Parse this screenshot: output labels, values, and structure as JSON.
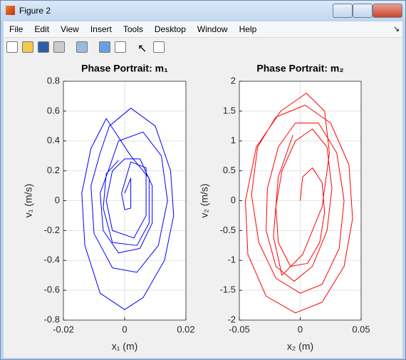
{
  "window": {
    "title": "Figure 2",
    "menu": [
      "File",
      "Edit",
      "View",
      "Insert",
      "Tools",
      "Desktop",
      "Window",
      "Help"
    ]
  },
  "chart_data": [
    {
      "type": "line",
      "title": "Phase Portrait: m₁",
      "x_label": "x₁ (m)",
      "y_label": "v₁ (m/s)",
      "color": "#0000ff",
      "grid": true,
      "xlim": [
        -0.02,
        0.02
      ],
      "xticks": [
        -0.02,
        0,
        0.02
      ],
      "ylim": [
        -0.8,
        0.8
      ],
      "yticks": [
        -0.8,
        -0.6,
        -0.4,
        -0.2,
        0,
        0.2,
        0.4,
        0.6,
        0.8
      ],
      "x": [
        0,
        0.002,
        0.002,
        0,
        -0.001,
        0,
        0.002,
        0.007,
        0.007,
        0.003,
        -0.004,
        -0.006,
        -0.004,
        0,
        0.005,
        0.009,
        0.009,
        0.005,
        -0.002,
        -0.007,
        -0.008,
        -0.005,
        -0.002,
        0.006,
        0.012,
        0.014,
        0.011,
        0.004,
        -0.004,
        -0.01,
        -0.011,
        -0.008,
        -0.005,
        0.002,
        0.01,
        0.015,
        0.016,
        0.013,
        0.006,
        0,
        -0.008,
        -0.013,
        -0.014,
        -0.011,
        -0.006,
        0.002,
        0.008,
        0.008,
        0.004,
        -0.004,
        -0.007,
        -0.006,
        -0.002
      ],
      "values": [
        0.05,
        0.15,
        -0.05,
        -0.06,
        0.05,
        0.12,
        0.26,
        0.22,
        -0.1,
        -0.25,
        -0.2,
        0,
        0.2,
        0.28,
        0.28,
        0.1,
        -0.15,
        -0.32,
        -0.35,
        -0.2,
        0.05,
        0.22,
        0.4,
        0.46,
        0.3,
        0,
        -0.3,
        -0.48,
        -0.45,
        -0.22,
        0.1,
        0.32,
        0.5,
        0.62,
        0.5,
        0.2,
        -0.1,
        -0.4,
        -0.65,
        -0.73,
        -0.62,
        -0.3,
        0.05,
        0.35,
        0.55,
        0.3,
        0.15,
        -0.15,
        -0.3,
        -0.28,
        -0.05,
        0.18,
        0.27
      ]
    },
    {
      "type": "line",
      "title": "Phase Portrait: m₂",
      "x_label": "x₂ (m)",
      "y_label": "v₂ (m/s)",
      "color": "#ff0000",
      "grid": true,
      "xlim": [
        -0.05,
        0.05
      ],
      "xticks": [
        -0.05,
        0,
        0.05
      ],
      "ylim": [
        -2,
        2
      ],
      "yticks": [
        -2,
        -1.5,
        -1,
        -0.5,
        0,
        0.5,
        1,
        1.5,
        2
      ],
      "x": [
        0,
        0.002,
        0.01,
        0.018,
        0.02,
        0.016,
        0.006,
        -0.008,
        -0.018,
        -0.02,
        -0.015,
        -0.004,
        0.01,
        0.022,
        0.026,
        0.022,
        0.01,
        -0.005,
        -0.02,
        -0.028,
        -0.027,
        -0.018,
        -0.004,
        0.015,
        0.03,
        0.036,
        0.032,
        0.018,
        0,
        -0.02,
        -0.034,
        -0.04,
        -0.035,
        -0.02,
        0.004,
        0.025,
        0.04,
        0.043,
        0.036,
        0.018,
        -0.004,
        -0.028,
        -0.043,
        -0.045,
        -0.036,
        -0.016,
        0.005,
        0.02,
        0.024,
        0.018,
        0.002,
        -0.015,
        -0.022,
        -0.018,
        -0.006
      ],
      "values": [
        0,
        0.4,
        0.55,
        0.3,
        -0.2,
        -0.7,
        -1.05,
        -1.1,
        -0.7,
        -0.1,
        0.5,
        1.0,
        1.2,
        0.9,
        0.2,
        -0.5,
        -1.1,
        -1.35,
        -1.1,
        -0.5,
        0.2,
        0.9,
        1.3,
        1.3,
        0.8,
        0,
        -0.8,
        -1.4,
        -1.55,
        -1.3,
        -0.7,
        0.1,
        0.9,
        1.4,
        1.6,
        1.3,
        0.6,
        -0.3,
        -1.1,
        -1.7,
        -1.88,
        -1.6,
        -0.9,
        0,
        0.9,
        1.5,
        1.8,
        1.5,
        0.8,
        -0.1,
        -0.9,
        -1.25,
        -0.6,
        0.4,
        1.1
      ]
    }
  ]
}
